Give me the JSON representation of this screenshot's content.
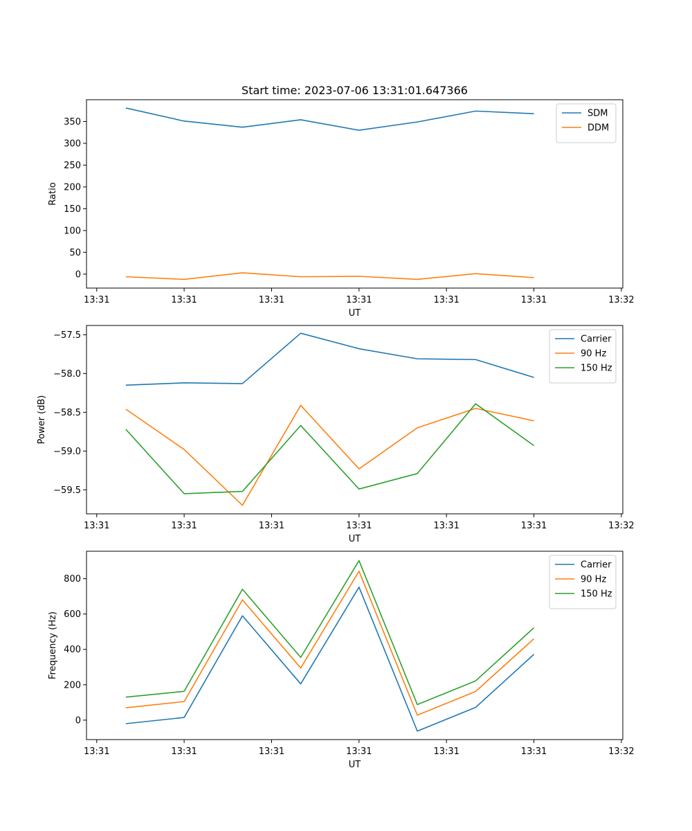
{
  "chart_data": [
    {
      "type": "line",
      "title": "Start time: 2023-07-06 13:31:01.647366",
      "xlabel": "UT",
      "ylabel": "Ratio",
      "x": [
        1,
        2,
        3,
        4,
        5,
        6,
        7,
        8
      ],
      "xlim": [
        0.325,
        9.525
      ],
      "xticks": [
        {
          "value": 0.5,
          "label": "13:31"
        },
        {
          "value": 2.0,
          "label": "13:31"
        },
        {
          "value": 3.5,
          "label": "13:31"
        },
        {
          "value": 5.0,
          "label": "13:31"
        },
        {
          "value": 6.5,
          "label": "13:31"
        },
        {
          "value": 8.0,
          "label": "13:31"
        },
        {
          "value": 9.5,
          "label": "13:32"
        }
      ],
      "ylim": [
        -32,
        400
      ],
      "yticks": [
        0,
        50,
        100,
        150,
        200,
        250,
        300,
        350
      ],
      "yticklabels": [
        "0",
        "50",
        "100",
        "150",
        "200",
        "250",
        "300",
        "350"
      ],
      "series": [
        {
          "name": "SDM",
          "color": "#1f77b4",
          "values": [
            381,
            351,
            337,
            354,
            330,
            349,
            374,
            368
          ]
        },
        {
          "name": "DDM",
          "color": "#ff7f0e",
          "values": [
            -6,
            -12,
            3,
            -6,
            -5,
            -12,
            1,
            -8
          ]
        }
      ],
      "legend": "top-right"
    },
    {
      "type": "line",
      "title": "",
      "xlabel": "UT",
      "ylabel": "Power (dB)",
      "x": [
        1,
        2,
        3,
        4,
        5,
        6,
        7,
        8
      ],
      "xlim": [
        0.325,
        9.525
      ],
      "xticks": [
        {
          "value": 0.5,
          "label": "13:31"
        },
        {
          "value": 2.0,
          "label": "13:31"
        },
        {
          "value": 3.5,
          "label": "13:31"
        },
        {
          "value": 5.0,
          "label": "13:31"
        },
        {
          "value": 6.5,
          "label": "13:31"
        },
        {
          "value": 8.0,
          "label": "13:31"
        },
        {
          "value": 9.5,
          "label": "13:32"
        }
      ],
      "ylim": [
        -59.81,
        -57.38
      ],
      "yticks": [
        -57.5,
        -58.0,
        -58.5,
        -59.0,
        -59.5
      ],
      "yticklabels": [
        "−57.5",
        "−58.0",
        "−58.5",
        "−59.0",
        "−59.5"
      ],
      "series": [
        {
          "name": "Carrier",
          "color": "#1f77b4",
          "values": [
            -58.15,
            -58.12,
            -58.13,
            -57.48,
            -57.68,
            -57.81,
            -57.82,
            -58.05
          ]
        },
        {
          "name": "90 Hz",
          "color": "#ff7f0e",
          "values": [
            -58.46,
            -58.98,
            -59.7,
            -58.41,
            -59.23,
            -58.7,
            -58.45,
            -58.61
          ]
        },
        {
          "name": "150 Hz",
          "color": "#2ca02c",
          "values": [
            -58.72,
            -59.55,
            -59.52,
            -58.67,
            -59.49,
            -59.29,
            -58.39,
            -58.93
          ]
        }
      ],
      "legend": "top-right"
    },
    {
      "type": "line",
      "title": "",
      "xlabel": "UT",
      "ylabel": "Frequency (Hz)",
      "x": [
        1,
        2,
        3,
        4,
        5,
        6,
        7,
        8
      ],
      "xlim": [
        0.325,
        9.525
      ],
      "xticks": [
        {
          "value": 0.5,
          "label": "13:31"
        },
        {
          "value": 2.0,
          "label": "13:31"
        },
        {
          "value": 3.5,
          "label": "13:31"
        },
        {
          "value": 5.0,
          "label": "13:31"
        },
        {
          "value": 6.5,
          "label": "13:31"
        },
        {
          "value": 8.0,
          "label": "13:31"
        },
        {
          "value": 9.5,
          "label": "13:32"
        }
      ],
      "ylim": [
        -110,
        955
      ],
      "yticks": [
        0,
        200,
        400,
        600,
        800
      ],
      "yticklabels": [
        "0",
        "200",
        "400",
        "600",
        "800"
      ],
      "series": [
        {
          "name": "Carrier",
          "color": "#1f77b4",
          "values": [
            -20,
            15,
            590,
            205,
            752,
            -62,
            72,
            372
          ]
        },
        {
          "name": "90 Hz",
          "color": "#ff7f0e",
          "values": [
            70,
            105,
            680,
            295,
            842,
            28,
            162,
            460
          ]
        },
        {
          "name": "150 Hz",
          "color": "#2ca02c",
          "values": [
            130,
            163,
            740,
            355,
            902,
            88,
            222,
            522
          ]
        }
      ],
      "legend": "top-right"
    }
  ]
}
